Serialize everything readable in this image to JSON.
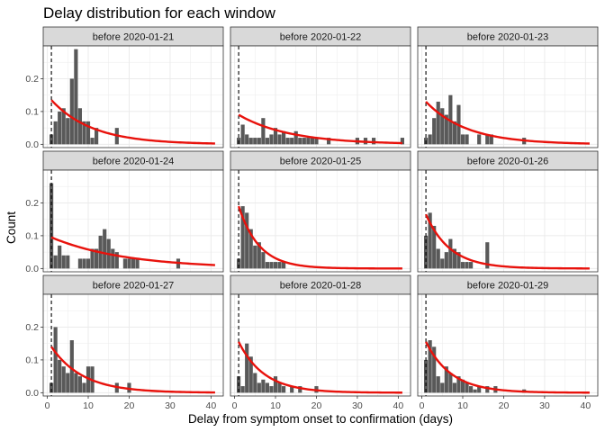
{
  "chart_data": {
    "type": "bar",
    "title": "Delay distribution for each window",
    "xlabel": "Delay from symptom onset to confirmation (days)",
    "ylabel": "Count",
    "xlim": [
      -1,
      43
    ],
    "ylim": [
      -0.01,
      0.3
    ],
    "x_ticks": [
      0,
      10,
      20,
      30,
      40
    ],
    "y_ticks": [
      0.0,
      0.1,
      0.2
    ],
    "y_tick_labels": [
      "0.0",
      "0.1",
      "0.2"
    ],
    "x_tick_labels": [
      "0",
      "10",
      "20",
      "30",
      "40"
    ],
    "reference_line_x": 1,
    "grid": true,
    "layout": "3x3 facets",
    "colors": {
      "bars": "#595959",
      "fit_line": "#e8120c",
      "reference_line": "#000000",
      "strip_bg": "#d9d9d9",
      "grid": "#ebebeb"
    },
    "panels": [
      {
        "label": "before 2020-01-21",
        "fit": {
          "start": 0.135,
          "rate": 0.1
        },
        "bars": [
          [
            1,
            0.03
          ],
          [
            2,
            0.07
          ],
          [
            3,
            0.1
          ],
          [
            4,
            0.11
          ],
          [
            5,
            0.08
          ],
          [
            6,
            0.2
          ],
          [
            7,
            0.29
          ],
          [
            8,
            0.11
          ],
          [
            9,
            0.07
          ],
          [
            10,
            0.07
          ],
          [
            11,
            0.02
          ],
          [
            12,
            0.05
          ],
          [
            17,
            0.05
          ]
        ]
      },
      {
        "label": "before 2020-01-22",
        "fit": {
          "start": 0.09,
          "rate": 0.08
        },
        "bars": [
          [
            1,
            0.02
          ],
          [
            2,
            0.06
          ],
          [
            3,
            0.03
          ],
          [
            4,
            0.02
          ],
          [
            5,
            0.02
          ],
          [
            6,
            0.02
          ],
          [
            7,
            0.08
          ],
          [
            8,
            0.02
          ],
          [
            9,
            0.03
          ],
          [
            10,
            0.05
          ],
          [
            11,
            0.03
          ],
          [
            12,
            0.04
          ],
          [
            13,
            0.02
          ],
          [
            14,
            0.02
          ],
          [
            15,
            0.04
          ],
          [
            16,
            0.02
          ],
          [
            17,
            0.02
          ],
          [
            18,
            0.02
          ],
          [
            19,
            0.02
          ],
          [
            20,
            0.02
          ],
          [
            23,
            0.02
          ],
          [
            30,
            0.02
          ],
          [
            32,
            0.02
          ],
          [
            34,
            0.02
          ],
          [
            41,
            0.02
          ]
        ]
      },
      {
        "label": "before 2020-01-23",
        "fit": {
          "start": 0.13,
          "rate": 0.1
        },
        "bars": [
          [
            1,
            0.02
          ],
          [
            2,
            0.03
          ],
          [
            3,
            0.08
          ],
          [
            4,
            0.13
          ],
          [
            5,
            0.11
          ],
          [
            6,
            0.09
          ],
          [
            7,
            0.15
          ],
          [
            8,
            0.07
          ],
          [
            9,
            0.12
          ],
          [
            10,
            0.03
          ],
          [
            11,
            0.03
          ],
          [
            14,
            0.03
          ],
          [
            16,
            0.03
          ],
          [
            17,
            0.03
          ],
          [
            25,
            0.02
          ]
        ]
      },
      {
        "label": "before 2020-01-24",
        "fit": {
          "start": 0.095,
          "rate": 0.055
        },
        "bars": [
          [
            1,
            0.26
          ],
          [
            2,
            0.04
          ],
          [
            3,
            0.07
          ],
          [
            4,
            0.04
          ],
          [
            5,
            0.04
          ],
          [
            8,
            0.03
          ],
          [
            9,
            0.03
          ],
          [
            10,
            0.03
          ],
          [
            11,
            0.06
          ],
          [
            12,
            0.06
          ],
          [
            13,
            0.1
          ],
          [
            14,
            0.12
          ],
          [
            15,
            0.09
          ],
          [
            16,
            0.06
          ],
          [
            17,
            0.05
          ],
          [
            19,
            0.03
          ],
          [
            20,
            0.03
          ],
          [
            21,
            0.03
          ],
          [
            22,
            0.03
          ],
          [
            32,
            0.03
          ]
        ]
      },
      {
        "label": "before 2020-01-25",
        "fit": {
          "start": 0.19,
          "rate": 0.2
        },
        "bars": [
          [
            1,
            0.03
          ],
          [
            2,
            0.19
          ],
          [
            3,
            0.17
          ],
          [
            4,
            0.12
          ],
          [
            5,
            0.07
          ],
          [
            6,
            0.08
          ],
          [
            7,
            0.05
          ],
          [
            8,
            0.02
          ],
          [
            9,
            0.02
          ],
          [
            10,
            0.02
          ],
          [
            11,
            0.02
          ],
          [
            12,
            0.02
          ]
        ]
      },
      {
        "label": "before 2020-01-26",
        "fit": {
          "start": 0.165,
          "rate": 0.17
        },
        "bars": [
          [
            1,
            0.1
          ],
          [
            2,
            0.17
          ],
          [
            3,
            0.13
          ],
          [
            4,
            0.06
          ],
          [
            5,
            0.03
          ],
          [
            6,
            0.05
          ],
          [
            7,
            0.09
          ],
          [
            8,
            0.06
          ],
          [
            9,
            0.05
          ],
          [
            10,
            0.02
          ],
          [
            11,
            0.02
          ],
          [
            12,
            0.02
          ],
          [
            16,
            0.08
          ]
        ]
      },
      {
        "label": "before 2020-01-27",
        "fit": {
          "start": 0.14,
          "rate": 0.13
        },
        "bars": [
          [
            1,
            0.03
          ],
          [
            2,
            0.2
          ],
          [
            3,
            0.1
          ],
          [
            4,
            0.08
          ],
          [
            5,
            0.06
          ],
          [
            6,
            0.16
          ],
          [
            7,
            0.06
          ],
          [
            8,
            0.05
          ],
          [
            9,
            0.03
          ],
          [
            10,
            0.08
          ],
          [
            11,
            0.08
          ],
          [
            17,
            0.03
          ],
          [
            20,
            0.03
          ]
        ]
      },
      {
        "label": "before 2020-01-28",
        "fit": {
          "start": 0.155,
          "rate": 0.16
        },
        "bars": [
          [
            1,
            0.05
          ],
          [
            2,
            0.02
          ],
          [
            3,
            0.15
          ],
          [
            4,
            0.11
          ],
          [
            5,
            0.06
          ],
          [
            6,
            0.03
          ],
          [
            7,
            0.04
          ],
          [
            8,
            0.03
          ],
          [
            9,
            0.02
          ],
          [
            10,
            0.05
          ],
          [
            11,
            0.03
          ],
          [
            12,
            0.02
          ],
          [
            14,
            0.02
          ],
          [
            16,
            0.02
          ],
          [
            20,
            0.02
          ]
        ]
      },
      {
        "label": "before 2020-01-29",
        "fit": {
          "start": 0.155,
          "rate": 0.16
        },
        "bars": [
          [
            1,
            0.1
          ],
          [
            2,
            0.16
          ],
          [
            3,
            0.14
          ],
          [
            4,
            0.05
          ],
          [
            5,
            0.03
          ],
          [
            6,
            0.08
          ],
          [
            7,
            0.06
          ],
          [
            8,
            0.03
          ],
          [
            9,
            0.05
          ],
          [
            10,
            0.04
          ],
          [
            11,
            0.03
          ],
          [
            12,
            0.02
          ],
          [
            13,
            0.01
          ],
          [
            14,
            0.02
          ],
          [
            16,
            0.02
          ],
          [
            18,
            0.02
          ],
          [
            25,
            0.01
          ]
        ]
      }
    ]
  }
}
